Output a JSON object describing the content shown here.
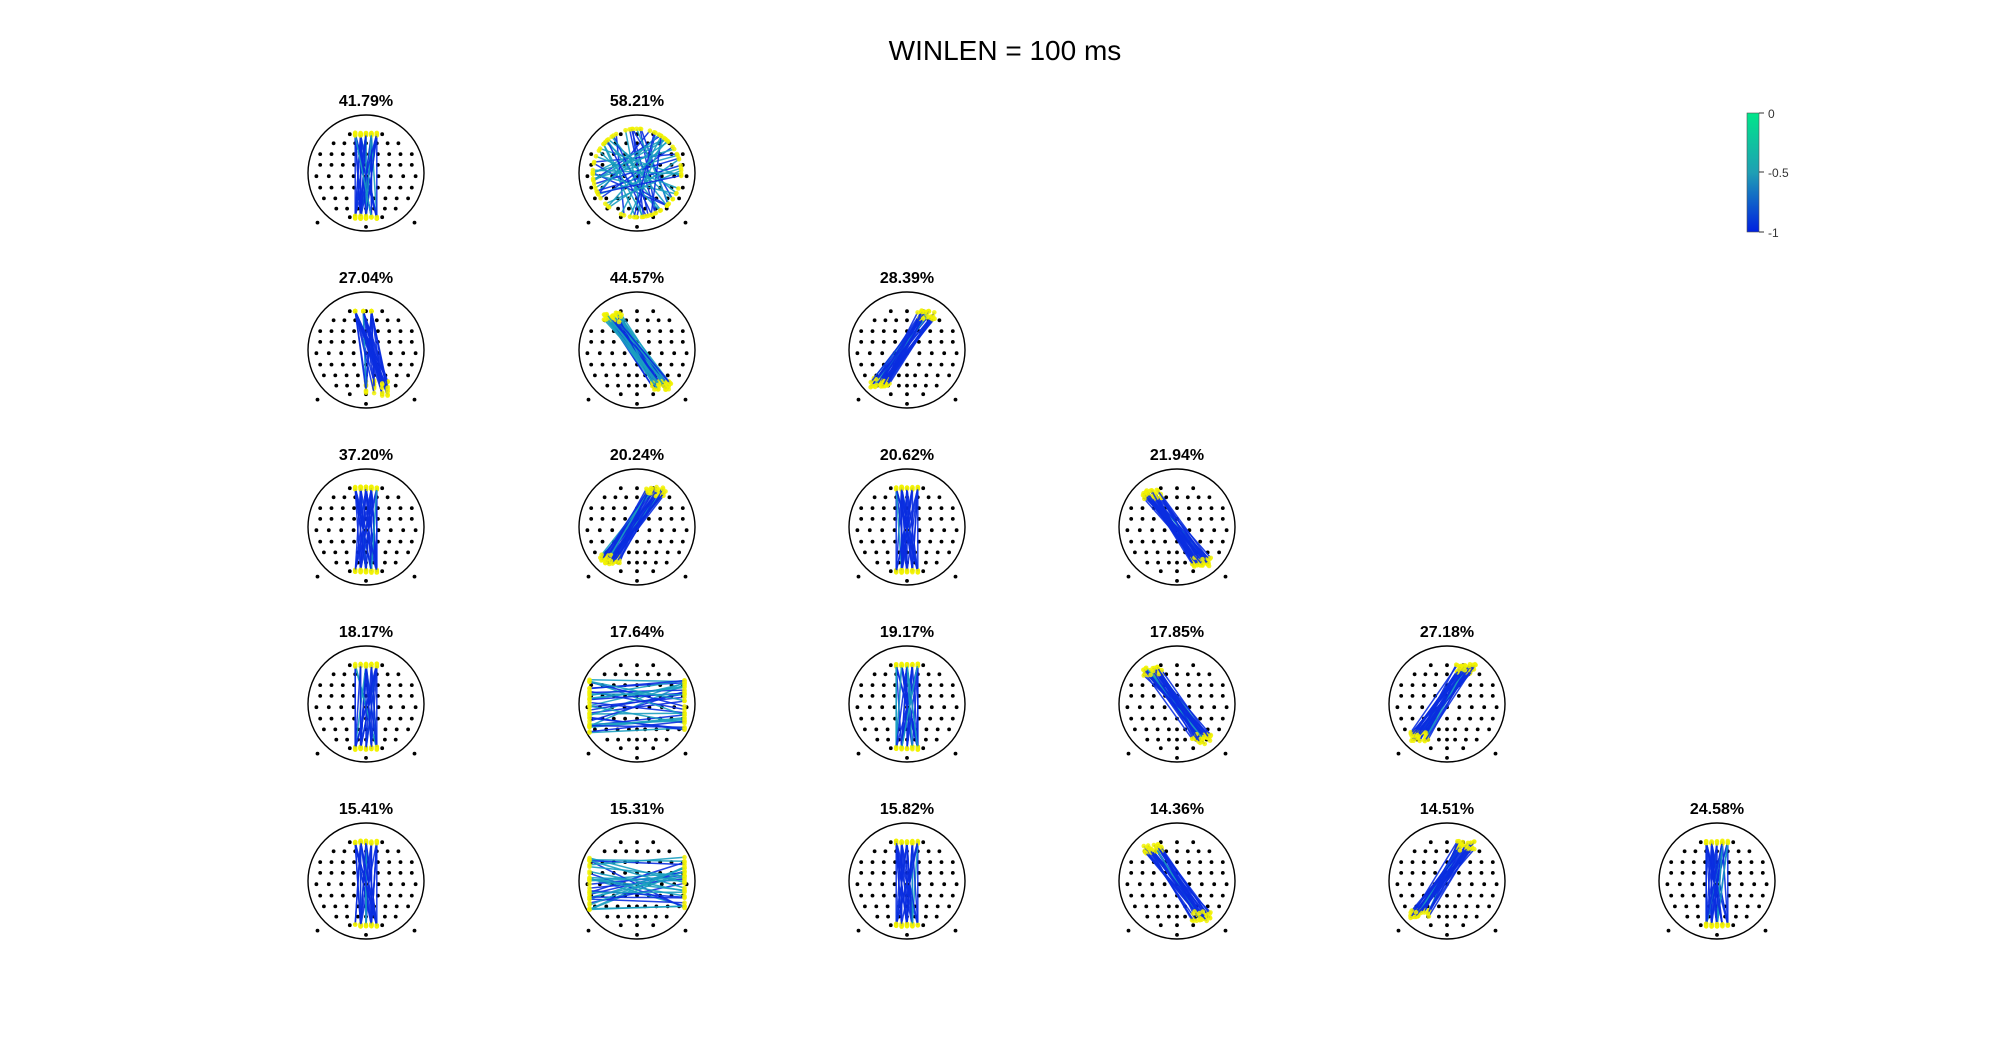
{
  "figure": {
    "title": "WINLEN = 100 ms"
  },
  "colorbar": {
    "ticks": [
      "0",
      "-0.5",
      "-1"
    ],
    "range": [
      -1,
      0
    ],
    "colors": {
      "high": "#00e68a",
      "mid": "#1f9fb4",
      "low": "#0020e0"
    }
  },
  "colors": {
    "head_outline": "#000000",
    "electrode": "#000000",
    "node_highlight": "#f2f200",
    "edge_strong": "#0a2ee0",
    "edge_mid": "#1a9fc0"
  },
  "chart_data": {
    "type": "other",
    "grid": false,
    "rows": [
      {
        "panels": [
          {
            "label": "41.79%",
            "value": 41.79,
            "pattern": "vertical"
          },
          {
            "label": "58.21%",
            "value": 58.21,
            "pattern": "radial"
          }
        ]
      },
      {
        "panels": [
          {
            "label": "27.04%",
            "value": 27.04,
            "pattern": "vertical-right"
          },
          {
            "label": "44.57%",
            "value": 44.57,
            "pattern": "diagonal-down"
          },
          {
            "label": "28.39%",
            "value": 28.39,
            "pattern": "diagonal-up"
          }
        ]
      },
      {
        "panels": [
          {
            "label": "37.20%",
            "value": 37.2,
            "pattern": "vertical"
          },
          {
            "label": "20.24%",
            "value": 20.24,
            "pattern": "diagonal-up"
          },
          {
            "label": "20.62%",
            "value": 20.62,
            "pattern": "vertical"
          },
          {
            "label": "21.94%",
            "value": 21.94,
            "pattern": "diagonal-down"
          }
        ]
      },
      {
        "panels": [
          {
            "label": "18.17%",
            "value": 18.17,
            "pattern": "vertical"
          },
          {
            "label": "17.64%",
            "value": 17.64,
            "pattern": "horizontal"
          },
          {
            "label": "19.17%",
            "value": 19.17,
            "pattern": "vertical"
          },
          {
            "label": "17.85%",
            "value": 17.85,
            "pattern": "diagonal-down"
          },
          {
            "label": "27.18%",
            "value": 27.18,
            "pattern": "diagonal-up"
          }
        ]
      },
      {
        "panels": [
          {
            "label": "15.41%",
            "value": 15.41,
            "pattern": "vertical"
          },
          {
            "label": "15.31%",
            "value": 15.31,
            "pattern": "horizontal"
          },
          {
            "label": "15.82%",
            "value": 15.82,
            "pattern": "vertical"
          },
          {
            "label": "14.36%",
            "value": 14.36,
            "pattern": "diagonal-down"
          },
          {
            "label": "14.51%",
            "value": 14.51,
            "pattern": "diagonal-up"
          },
          {
            "label": "24.58%",
            "value": 24.58,
            "pattern": "vertical"
          }
        ]
      }
    ]
  }
}
